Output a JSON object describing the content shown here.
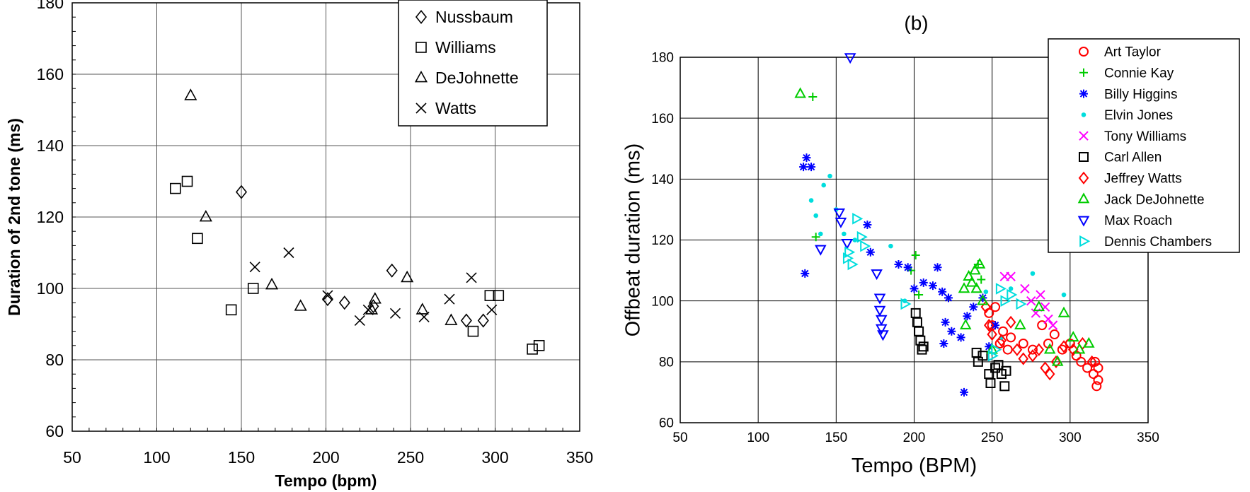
{
  "chart_data": [
    {
      "panel": "left",
      "type": "scatter",
      "title": "",
      "xlabel": "Tempo (bpm)",
      "ylabel": "Duration of  2nd tone (ms)",
      "xlim": [
        50,
        350
      ],
      "ylim": [
        60,
        180
      ],
      "xticks": [
        "50",
        "100",
        "150",
        "200",
        "250",
        "300",
        "350"
      ],
      "yticks": [
        "60",
        "80",
        "100",
        "120",
        "140",
        "160",
        "180"
      ],
      "grid": true,
      "legend": "top-right",
      "series": [
        {
          "name": "Nussbaum",
          "marker": "diamond",
          "color": "#000000",
          "points": [
            [
              150,
              127
            ],
            [
              201,
              97
            ],
            [
              211,
              96
            ],
            [
              228,
              95
            ],
            [
              239,
              105
            ],
            [
              283,
              91
            ],
            [
              293,
              91
            ]
          ]
        },
        {
          "name": "Williams",
          "marker": "square",
          "color": "#000000",
          "points": [
            [
              111,
              128
            ],
            [
              118,
              130
            ],
            [
              124,
              114
            ],
            [
              144,
              94
            ],
            [
              157,
              100
            ],
            [
              287,
              88
            ],
            [
              297,
              98
            ],
            [
              302,
              98
            ],
            [
              322,
              83
            ],
            [
              326,
              84
            ]
          ]
        },
        {
          "name": "DeJohnette",
          "marker": "triangle",
          "color": "#000000",
          "points": [
            [
              120,
              154
            ],
            [
              129,
              120
            ],
            [
              168,
              101
            ],
            [
              185,
              95
            ],
            [
              227,
              94
            ],
            [
              229,
              97
            ],
            [
              248,
              103
            ],
            [
              257,
              94
            ],
            [
              274,
              91
            ]
          ]
        },
        {
          "name": "Watts",
          "marker": "x",
          "color": "#000000",
          "points": [
            [
              158,
              106
            ],
            [
              178,
              110
            ],
            [
              201,
              98
            ],
            [
              220,
              91
            ],
            [
              225,
              94
            ],
            [
              241,
              93
            ],
            [
              258,
              92
            ],
            [
              273,
              97
            ],
            [
              286,
              103
            ],
            [
              298,
              94
            ]
          ]
        }
      ]
    },
    {
      "panel": "right",
      "type": "scatter",
      "title": "(b)",
      "xlabel": "Tempo (BPM)",
      "ylabel": "Offbeat duration (ms)",
      "xlim": [
        50,
        350
      ],
      "ylim": [
        60,
        180
      ],
      "xticks": [
        "50",
        "100",
        "150",
        "200",
        "250",
        "300",
        "350"
      ],
      "yticks": [
        "60",
        "80",
        "100",
        "120",
        "140",
        "160",
        "180"
      ],
      "grid": true,
      "legend": "top-right",
      "series": [
        {
          "name": "Art Taylor",
          "marker": "circle",
          "color": "#ff0000",
          "points": [
            [
              248,
              96
            ],
            [
              250,
              92
            ],
            [
              252,
              98
            ],
            [
              255,
              86
            ],
            [
              257,
              90
            ],
            [
              260,
              84
            ],
            [
              262,
              88
            ],
            [
              270,
              86
            ],
            [
              276,
              84
            ],
            [
              282,
              92
            ],
            [
              286,
              86
            ],
            [
              290,
              89
            ],
            [
              295,
              84
            ],
            [
              300,
              86
            ],
            [
              304,
              82
            ],
            [
              307,
              80
            ],
            [
              311,
              78
            ],
            [
              315,
              76
            ],
            [
              317,
              72
            ],
            [
              318,
              74
            ],
            [
              318,
              78
            ],
            [
              316,
              80
            ]
          ]
        },
        {
          "name": "Connie Kay",
          "marker": "plus",
          "color": "#00cc00",
          "points": [
            [
              135,
              167
            ],
            [
              137,
              121
            ],
            [
              198,
              110
            ],
            [
              201,
              115
            ],
            [
              203,
              102
            ],
            [
              243,
              107
            ],
            [
              241,
              112
            ]
          ]
        },
        {
          "name": "Billy Higgins",
          "marker": "star",
          "color": "#0000ff",
          "points": [
            [
              129,
              144
            ],
            [
              131,
              147
            ],
            [
              134,
              144
            ],
            [
              130,
              109
            ],
            [
              170,
              125
            ],
            [
              172,
              116
            ],
            [
              190,
              112
            ],
            [
              196,
              111
            ],
            [
              200,
              104
            ],
            [
              206,
              106
            ],
            [
              212,
              105
            ],
            [
              215,
              111
            ],
            [
              218,
              103
            ],
            [
              222,
              101
            ],
            [
              220,
              93
            ],
            [
              224,
              90
            ],
            [
              219,
              86
            ],
            [
              230,
              88
            ],
            [
              232,
              70
            ],
            [
              234,
              95
            ],
            [
              238,
              98
            ],
            [
              244,
              101
            ],
            [
              248,
              85
            ],
            [
              252,
              92
            ]
          ]
        },
        {
          "name": "Elvin Jones",
          "marker": "dot",
          "color": "#00dddd",
          "points": [
            [
              134,
              133
            ],
            [
              137,
              128
            ],
            [
              140,
              122
            ],
            [
              142,
              138
            ],
            [
              146,
              141
            ],
            [
              150,
              130
            ],
            [
              155,
              122
            ],
            [
              162,
              120
            ],
            [
              185,
              118
            ],
            [
              194,
              100
            ],
            [
              246,
              103
            ],
            [
              256,
              88
            ],
            [
              262,
              104
            ],
            [
              276,
              109
            ],
            [
              296,
              102
            ]
          ]
        },
        {
          "name": "Tony Williams",
          "marker": "x",
          "color": "#ff00ff",
          "points": [
            [
              258,
              108
            ],
            [
              262,
              108
            ],
            [
              271,
              104
            ],
            [
              275,
              100
            ],
            [
              278,
              96
            ],
            [
              281,
              102
            ],
            [
              284,
              98
            ],
            [
              286,
              94
            ],
            [
              289,
              92
            ]
          ]
        },
        {
          "name": "Carl Allen",
          "marker": "square",
          "color": "#000000",
          "points": [
            [
              201,
              96
            ],
            [
              202,
              93
            ],
            [
              203,
              90
            ],
            [
              204,
              87
            ],
            [
              205,
              84
            ],
            [
              206,
              85
            ],
            [
              240,
              83
            ],
            [
              241,
              80
            ],
            [
              244,
              82
            ],
            [
              248,
              76
            ],
            [
              249,
              73
            ],
            [
              252,
              78
            ],
            [
              254,
              79
            ],
            [
              256,
              76
            ],
            [
              258,
              72
            ],
            [
              259,
              77
            ]
          ]
        },
        {
          "name": "Jeffrey Watts",
          "marker": "diamond",
          "color": "#ff0000",
          "points": [
            [
              246,
              98
            ],
            [
              248,
              92
            ],
            [
              250,
              89
            ],
            [
              256,
              87
            ],
            [
              262,
              93
            ],
            [
              266,
              84
            ],
            [
              270,
              81
            ],
            [
              276,
              82
            ],
            [
              280,
              84
            ],
            [
              284,
              78
            ],
            [
              287,
              76
            ],
            [
              291,
              80
            ],
            [
              296,
              85
            ],
            [
              302,
              84
            ],
            [
              308,
              86
            ],
            [
              314,
              80
            ]
          ]
        },
        {
          "name": "Jack DeJohnette",
          "marker": "triangle",
          "color": "#00cc00",
          "points": [
            [
              127,
              168
            ],
            [
              232,
              104
            ],
            [
              233,
              92
            ],
            [
              235,
              108
            ],
            [
              237,
              106
            ],
            [
              239,
              110
            ],
            [
              240,
              104
            ],
            [
              242,
              112
            ],
            [
              244,
              100
            ],
            [
              250,
              84
            ],
            [
              268,
              92
            ],
            [
              280,
              98
            ],
            [
              287,
              84
            ],
            [
              292,
              80
            ],
            [
              296,
              96
            ],
            [
              302,
              88
            ],
            [
              306,
              84
            ],
            [
              312,
              86
            ]
          ]
        },
        {
          "name": "Max Roach",
          "marker": "triangle-down",
          "color": "#0000ff",
          "points": [
            [
              140,
              117
            ],
            [
              152,
              129
            ],
            [
              153,
              126
            ],
            [
              157,
              119
            ],
            [
              159,
              180
            ],
            [
              176,
              109
            ],
            [
              178,
              101
            ],
            [
              178,
              97
            ],
            [
              179,
              94
            ],
            [
              179,
              91
            ],
            [
              180,
              89
            ]
          ]
        },
        {
          "name": "Dennis Chambers",
          "marker": "triangle-right",
          "color": "#00dddd",
          "points": [
            [
              157,
              114
            ],
            [
              158,
              116
            ],
            [
              160,
              112
            ],
            [
              163,
              127
            ],
            [
              166,
              121
            ],
            [
              168,
              118
            ],
            [
              194,
              99
            ],
            [
              250,
              82
            ],
            [
              252,
              84
            ],
            [
              255,
              104
            ],
            [
              258,
              100
            ],
            [
              262,
              102
            ],
            [
              268,
              99
            ]
          ]
        }
      ]
    }
  ]
}
